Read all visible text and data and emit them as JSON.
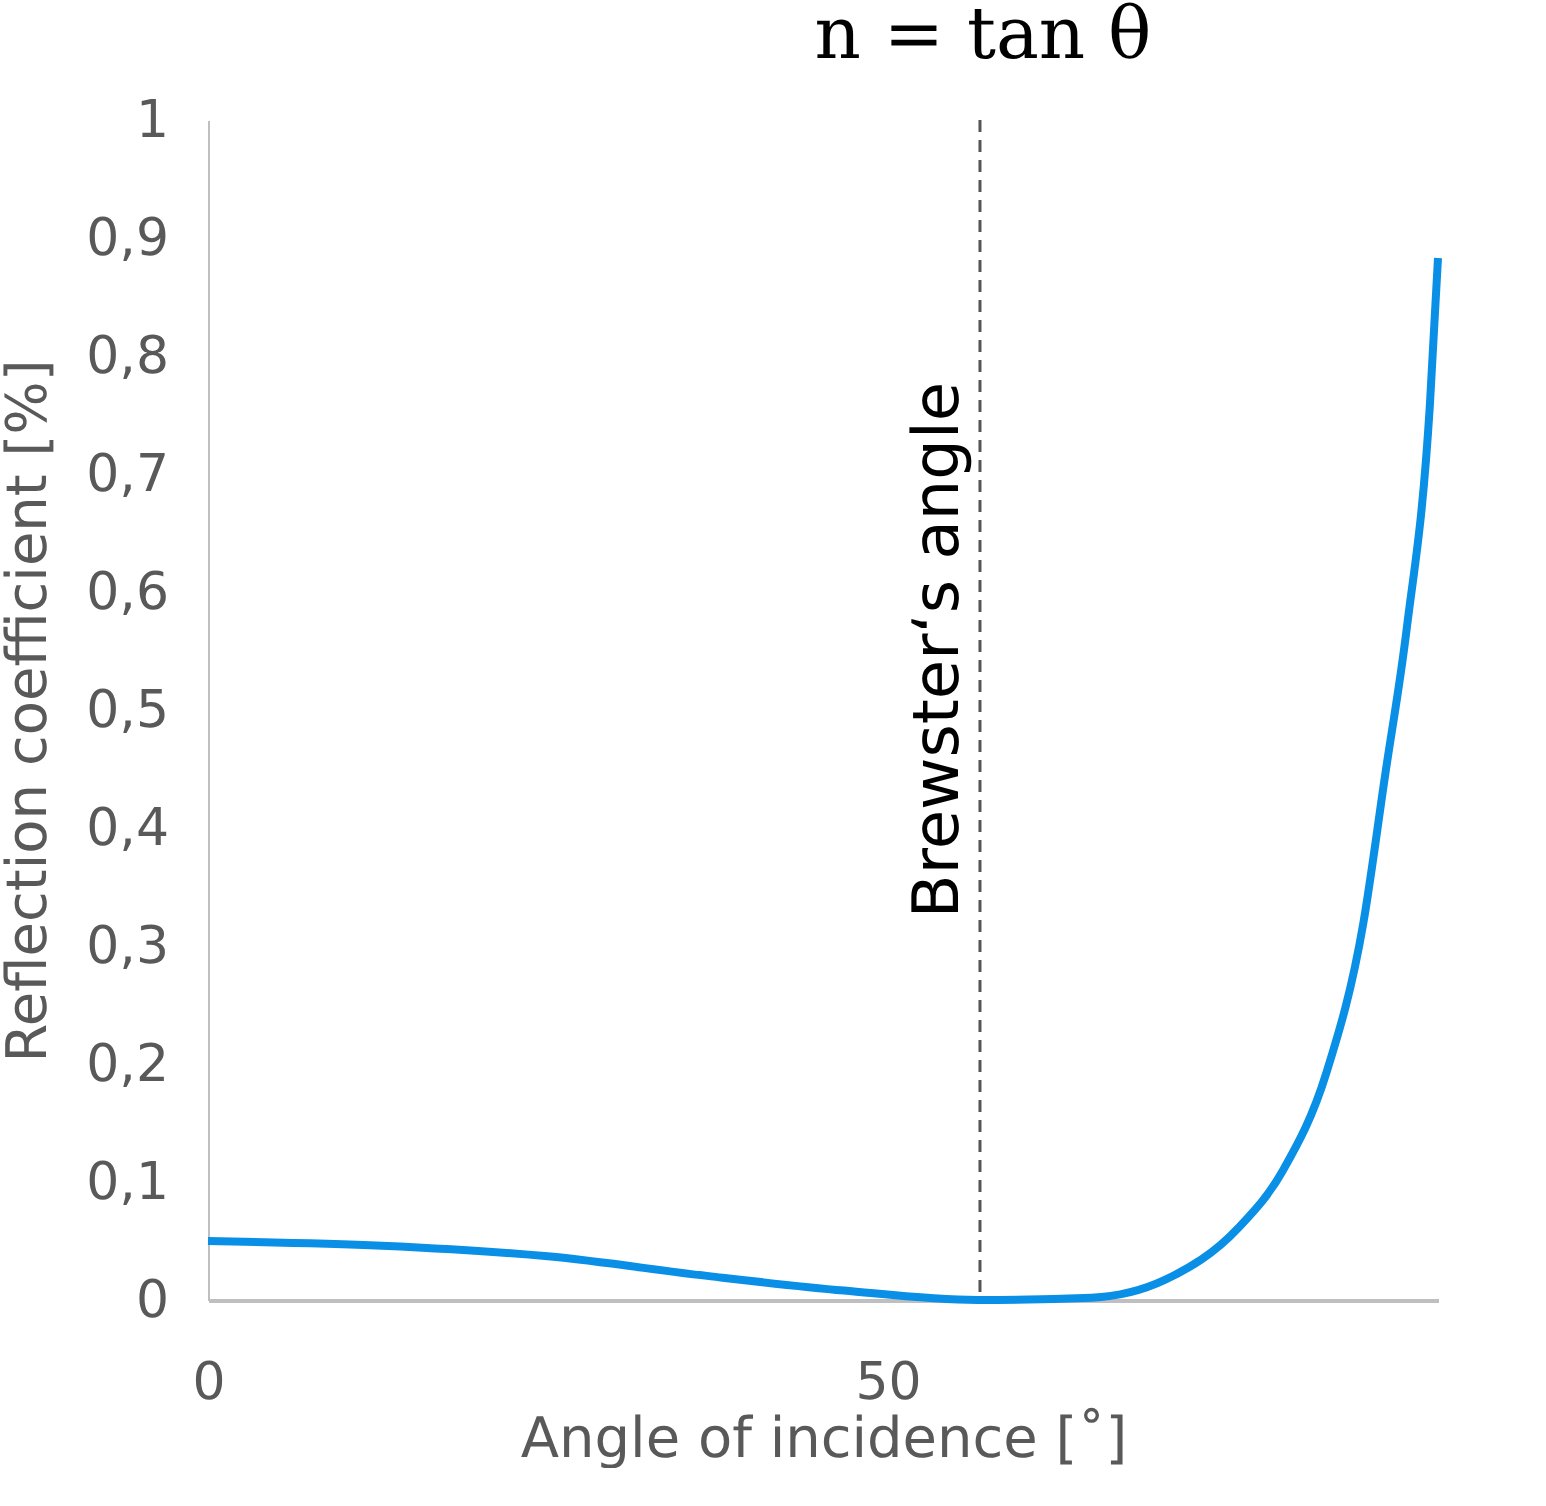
{
  "chart_data": {
    "type": "line",
    "title": "n = tan θ",
    "xlabel": "Angle of incidence [˚]",
    "ylabel": "Reflection coefficient [%]",
    "x": [
      0,
      12.8,
      25,
      37,
      46.8,
      56.6,
      65,
      70.4,
      75.8,
      79.1,
      82.3,
      85,
      86.6,
      88.2,
      89.9,
      90.5
    ],
    "series": [
      {
        "color": "#0a8fe6",
        "values": [
          0.05,
          0.046,
          0.037,
          0.02,
          0.008,
          0,
          0.002,
          0.017,
          0.061,
          0.11,
          0.193,
          0.319,
          0.444,
          0.569,
          0.758,
          0.883
        ]
      }
    ],
    "xlim": [
      0,
      90.5
    ],
    "xticks": [
      0,
      50
    ],
    "ylim": [
      0,
      1
    ],
    "yticks": [
      0,
      {
        "value": 0.1,
        "label": "0,1"
      },
      {
        "value": 0.2,
        "label": "0,2"
      },
      {
        "value": 0.3,
        "label": "0,3"
      },
      {
        "value": 0.4,
        "label": "0,4"
      },
      {
        "value": 0.5,
        "label": "0,5"
      },
      {
        "value": 0.6,
        "label": "0,6"
      },
      {
        "value": 0.7,
        "label": "0,7"
      },
      {
        "value": 0.8,
        "label": "0,8"
      },
      {
        "value": 0.9,
        "label": "0,9"
      },
      1
    ],
    "ref_lines": [
      {
        "axis": "x",
        "value": 56.8,
        "label": "Brewster‘s angle",
        "color": "#555555",
        "line_style": "dashed"
      }
    ],
    "grid": false,
    "marker": "none",
    "line_style": "solid"
  }
}
